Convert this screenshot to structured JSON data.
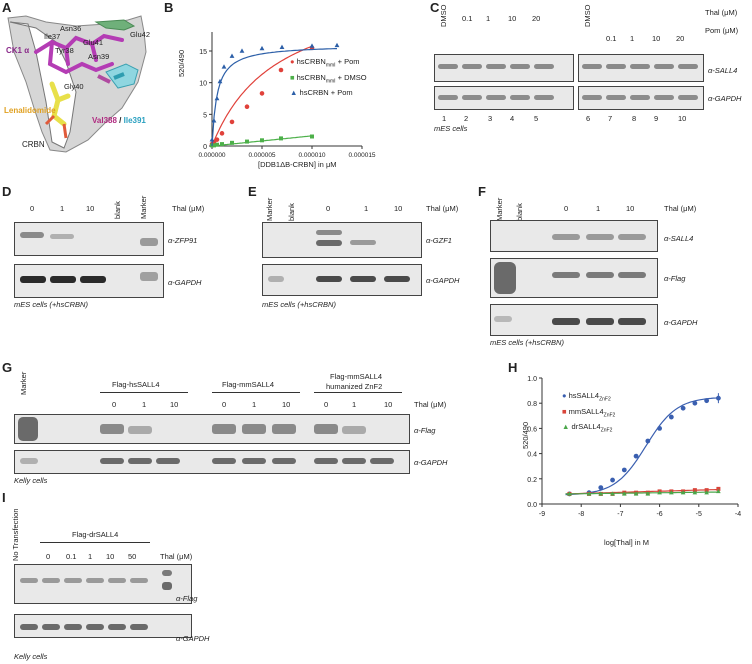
{
  "panels": {
    "A": {
      "label": "A",
      "residues": [
        "Asn36",
        "Ile37",
        "Tyr38",
        "Asn39",
        "Glu41",
        "Glu42",
        "Gly40"
      ],
      "ck1": "CK1 α",
      "lenalidomide": "Lenalidomide",
      "val388": "Val388",
      "slash": "/",
      "ile391": "Ile391",
      "crbn": "CRBN"
    },
    "B": {
      "label": "B",
      "ylabel": "520/490",
      "xlabel": "[DDB1ΔB-CRBN] in μM",
      "legend": [
        "hsCRBN_mmI + Pom",
        "hsCRBN_mmI + DMSO",
        "hsCRBN + Pom"
      ],
      "legend_main": "hsCRBN",
      "legend_sub": "mmI",
      "legend_rest": [
        " + Pom",
        " + DMSO"
      ],
      "legend_third": "hsCRBN + Pom",
      "xticks": [
        "0.000000",
        "0.000005",
        "0.000010",
        "0.000015"
      ],
      "yticks": [
        "0",
        "5",
        "10",
        "15"
      ]
    },
    "C": {
      "label": "C",
      "lanes_top": [
        "DMSO",
        "0.1",
        "1",
        "10",
        "20",
        "DMSO",
        "0.1",
        "1",
        "10",
        "20"
      ],
      "thal": "Thal (μM)",
      "pom": "Pom (μM)",
      "ab1": "α-SALL4",
      "ab2": "α-GAPDH",
      "lane_nums": [
        "1",
        "2",
        "3",
        "4",
        "5",
        "6",
        "7",
        "8",
        "9",
        "10"
      ],
      "cells": "mES cells"
    },
    "D": {
      "label": "D",
      "lanes": [
        "0",
        "1",
        "10",
        "blank",
        "Marker"
      ],
      "thal": "Thal (μM)",
      "ab1": "α-ZFP91",
      "ab2": "α-GAPDH",
      "cells": "mES cells (+hsCRBN)"
    },
    "E": {
      "label": "E",
      "lanes": [
        "Marker",
        "blank",
        "0",
        "1",
        "10"
      ],
      "thal": "Thal (μM)",
      "ab1": "α-GZF1",
      "ab2": "α-GAPDH",
      "cells": "mES cells (+hsCRBN)"
    },
    "F": {
      "label": "F",
      "lanes": [
        "Marker",
        "blank",
        "0",
        "1",
        "10"
      ],
      "thal": "Thal (μM)",
      "ab1": "α-SALL4",
      "ab2": "α-Flag",
      "ab3": "α-GAPDH",
      "cells": "mES cells (+hsCRBN)"
    },
    "G": {
      "label": "G",
      "marker": "Marker",
      "group1": "Flag-hsSALL4",
      "group2": "Flag-mmSALL4",
      "group3": "Flag-mmSALL4 humanized ZnF2",
      "group3a": "Flag-mmSALL4",
      "group3b": "humanized ZnF2",
      "doses": [
        "0",
        "1",
        "10"
      ],
      "thal": "Thal (μM)",
      "ab1": "α-Flag",
      "ab2": "α-GAPDH",
      "cells": "Kelly cells"
    },
    "H": {
      "label": "H",
      "ylabel": "520/490",
      "xlabel": "log[Thal] in M",
      "legend": [
        "hsSALL4_ZnF2",
        "mmSALL4_ZnF2",
        "drSALL4_ZnF2"
      ],
      "legend_main": [
        "hsSALL4",
        "mmSALL4",
        "drSALL4"
      ],
      "legend_sub": "ZnF2",
      "xticks": [
        "-9",
        "-8",
        "-7",
        "-6",
        "-5",
        "-4"
      ],
      "yticks": [
        "0.0",
        "0.2",
        "0.4",
        "0.6",
        "0.8",
        "1.0"
      ]
    },
    "I": {
      "label": "I",
      "no_transfection": "No Transfection",
      "group": "Flag-drSALL4",
      "doses": [
        "0",
        "0.1",
        "1",
        "10",
        "50"
      ],
      "thal": "Thal (μM)",
      "ab1": "α-Flag",
      "ab2": "α-GAPDH",
      "cells": "Kelly cells"
    }
  },
  "chart_data": [
    {
      "type": "scatter",
      "title": "",
      "xlabel": "[DDB1ΔB-CRBN] in μM",
      "ylabel": "520/490",
      "xlim": [
        0,
        1.5e-05
      ],
      "ylim": [
        0,
        18
      ],
      "series": [
        {
          "name": "hsCRBN_mmI + Pom",
          "color": "#e0413a",
          "x": [
            0.0,
            2e-07,
            5e-07,
            1e-06,
            2e-06,
            3.5e-06,
            5e-06,
            6.9e-06,
            1e-05
          ],
          "y": [
            0.3,
            0.6,
            1.0,
            2.0,
            3.8,
            6.2,
            8.3,
            12.0,
            15.5
          ]
        },
        {
          "name": "hsCRBN_mmI + DMSO",
          "color": "#4db04a",
          "x": [
            0.0,
            2e-07,
            5e-07,
            1e-06,
            2e-06,
            3.5e-06,
            5e-06,
            6.9e-06,
            1e-05
          ],
          "y": [
            0.1,
            0.1,
            0.2,
            0.3,
            0.5,
            0.7,
            0.9,
            1.2,
            1.5
          ]
        },
        {
          "name": "hsCRBN + Pom",
          "color": "#2c5fa8",
          "x": [
            0.0,
            2e-07,
            5e-07,
            8e-07,
            1.2e-06,
            2e-06,
            3e-06,
            5e-06,
            7e-06,
            1e-05,
            1.25e-05
          ],
          "y": [
            1.0,
            4.0,
            7.5,
            10.2,
            12.5,
            14.2,
            15.0,
            15.4,
            15.6,
            15.8,
            15.9
          ]
        }
      ]
    },
    {
      "type": "scatter",
      "title": "",
      "xlabel": "log[Thal] in M",
      "ylabel": "520/490",
      "xlim": [
        -9,
        -4
      ],
      "ylim": [
        0,
        1.0
      ],
      "series": [
        {
          "name": "hsSALL4_ZnF2",
          "color": "#3a5fb0",
          "x": [
            -8.3,
            -7.8,
            -7.5,
            -7.2,
            -6.9,
            -6.6,
            -6.3,
            -6.0,
            -5.7,
            -5.4,
            -5.1,
            -4.8,
            -4.5
          ],
          "y": [
            0.08,
            0.09,
            0.13,
            0.19,
            0.27,
            0.38,
            0.5,
            0.6,
            0.69,
            0.76,
            0.8,
            0.82,
            0.84
          ]
        },
        {
          "name": "mmSALL4_ZnF2",
          "color": "#d9443a",
          "x": [
            -8.3,
            -7.8,
            -7.5,
            -7.2,
            -6.9,
            -6.6,
            -6.3,
            -6.0,
            -5.7,
            -5.4,
            -5.1,
            -4.8,
            -4.5
          ],
          "y": [
            0.08,
            0.08,
            0.08,
            0.08,
            0.09,
            0.09,
            0.09,
            0.1,
            0.1,
            0.1,
            0.11,
            0.11,
            0.12
          ]
        },
        {
          "name": "drSALL4_ZnF2",
          "color": "#4aa64a",
          "x": [
            -8.3,
            -7.8,
            -7.5,
            -7.2,
            -6.9,
            -6.6,
            -6.3,
            -6.0,
            -5.7,
            -5.4,
            -5.1,
            -4.8,
            -4.5
          ],
          "y": [
            0.08,
            0.08,
            0.08,
            0.08,
            0.08,
            0.08,
            0.08,
            0.09,
            0.09,
            0.09,
            0.09,
            0.09,
            0.1
          ]
        }
      ]
    }
  ]
}
